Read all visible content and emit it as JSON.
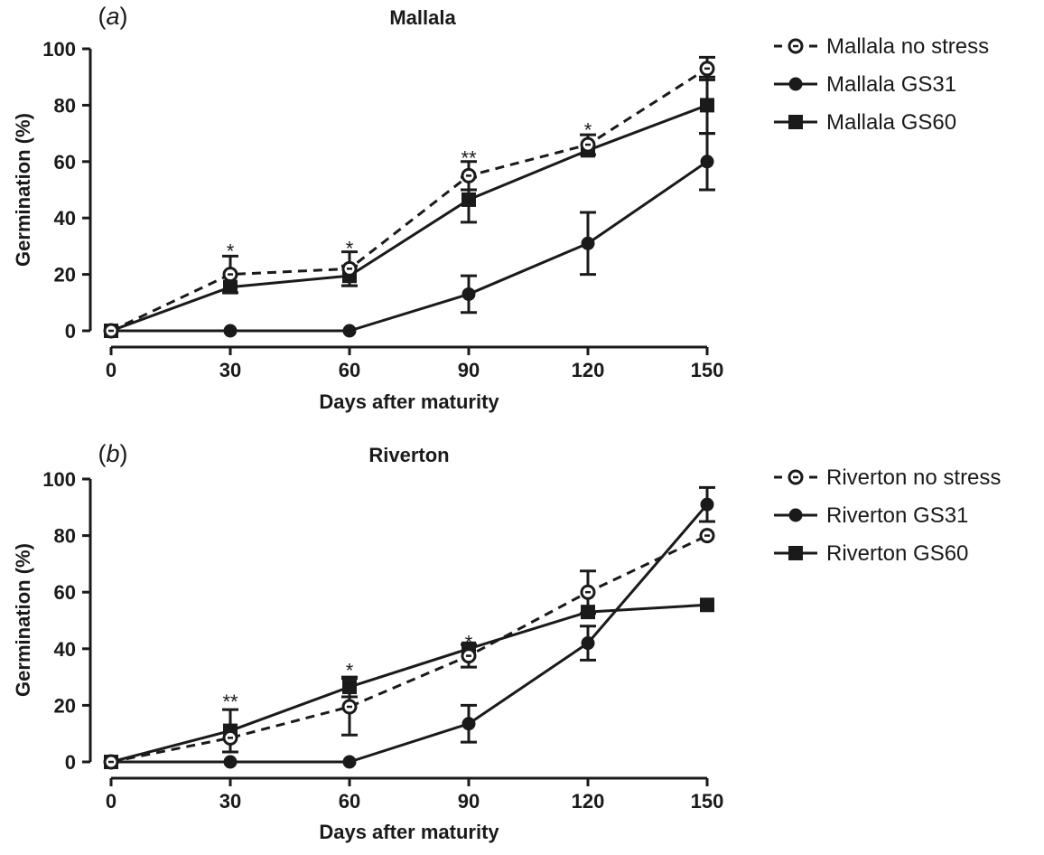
{
  "chart_data": [
    {
      "type": "line",
      "panel_label": "(a)",
      "title": "Mallala",
      "xlabel": "Days after maturity",
      "ylabel": "Germination (%)",
      "xlim": [
        0,
        150
      ],
      "ylim": [
        0,
        100
      ],
      "x_ticks": [
        "0",
        "30",
        "60",
        "90",
        "120",
        "150"
      ],
      "y_ticks": [
        "0",
        "20",
        "40",
        "60",
        "80",
        "100"
      ],
      "legend_position": "right",
      "x": [
        0,
        30,
        60,
        90,
        120,
        150
      ],
      "series": [
        {
          "name": "Mallala no stress",
          "marker": "open-circle",
          "dash": true,
          "values": [
            0,
            20,
            22,
            55,
            66,
            93
          ],
          "errors": [
            0,
            6.5,
            6,
            5,
            3.5,
            4
          ]
        },
        {
          "name": "Mallala GS31",
          "marker": "filled-circle",
          "dash": false,
          "values": [
            0,
            0,
            0,
            13,
            31,
            60
          ],
          "errors": [
            0,
            0,
            0,
            6.5,
            11,
            10
          ]
        },
        {
          "name": "Mallala GS60",
          "marker": "filled-square",
          "dash": false,
          "values": [
            0,
            15.5,
            19.5,
            46.5,
            64,
            80
          ],
          "errors": [
            0,
            0,
            3.5,
            8,
            0,
            10
          ]
        }
      ],
      "annotations": [
        {
          "x": 30,
          "y": 29,
          "text": "*"
        },
        {
          "x": 60,
          "y": 30,
          "text": "*"
        },
        {
          "x": 90,
          "y": 62,
          "text": "**"
        },
        {
          "x": 120,
          "y": 72,
          "text": "*"
        }
      ]
    },
    {
      "type": "line",
      "panel_label": "(b)",
      "title": "Riverton",
      "xlabel": "Days after maturity",
      "ylabel": "Germination (%)",
      "xlim": [
        0,
        150
      ],
      "ylim": [
        0,
        100
      ],
      "x_ticks": [
        "0",
        "30",
        "60",
        "90",
        "120",
        "150"
      ],
      "y_ticks": [
        "0",
        "20",
        "40",
        "60",
        "80",
        "100"
      ],
      "legend_position": "right",
      "x": [
        0,
        30,
        60,
        90,
        120,
        150
      ],
      "series": [
        {
          "name": "Riverton no stress",
          "marker": "open-circle",
          "dash": true,
          "values": [
            0,
            8.5,
            19.5,
            37.5,
            60,
            80
          ],
          "errors": [
            0,
            0,
            10,
            4,
            7.5,
            0
          ]
        },
        {
          "name": "Riverton GS31",
          "marker": "filled-circle",
          "dash": false,
          "values": [
            0,
            0,
            0,
            13.5,
            42,
            91
          ],
          "errors": [
            0,
            0,
            0,
            6.5,
            6,
            6
          ]
        },
        {
          "name": "Riverton GS60",
          "marker": "filled-square",
          "dash": false,
          "values": [
            0,
            11,
            26.5,
            40,
            53,
            55.5
          ],
          "errors": [
            0,
            7.5,
            3.5,
            0,
            0,
            0
          ]
        }
      ],
      "annotations": [
        {
          "x": 30,
          "y": 22,
          "text": "**"
        },
        {
          "x": 60,
          "y": 33,
          "text": "*"
        },
        {
          "x": 90,
          "y": 43,
          "text": "*"
        }
      ]
    }
  ]
}
